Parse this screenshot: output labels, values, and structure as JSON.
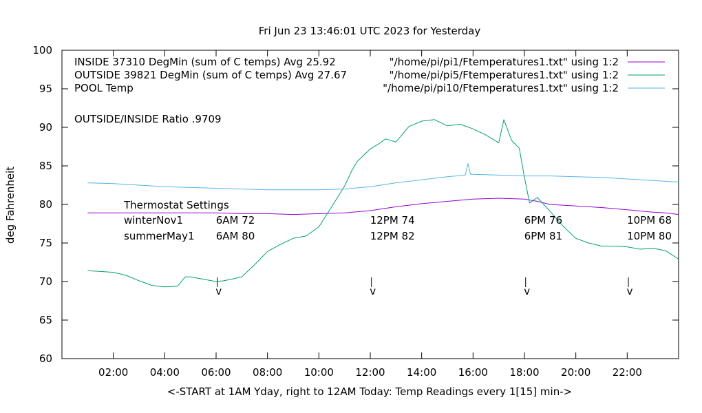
{
  "chart_data": {
    "type": "line",
    "title": "Fri Jun 23 13:46:01 UTC 2023 for Yesterday",
    "xlabel": "<-START at 1AM Yday, right to 12AM Today:  Temp Readings every 1[15] min->",
    "ylabel": "deg Fahrenheit",
    "xlim": [
      0.0,
      24.0
    ],
    "ylim": [
      60,
      100
    ],
    "x_ticks": [
      {
        "x": 2,
        "label": "02:00"
      },
      {
        "x": 4,
        "label": "04:00"
      },
      {
        "x": 6,
        "label": "06:00"
      },
      {
        "x": 8,
        "label": "08:00"
      },
      {
        "x": 10,
        "label": "10:00"
      },
      {
        "x": 12,
        "label": "12:00"
      },
      {
        "x": 14,
        "label": "14:00"
      },
      {
        "x": 16,
        "label": "16:00"
      },
      {
        "x": 18,
        "label": "18:00"
      },
      {
        "x": 20,
        "label": "20:00"
      },
      {
        "x": 22,
        "label": "22:00"
      }
    ],
    "y_ticks": [
      {
        "y": 60,
        "label": "60"
      },
      {
        "y": 65,
        "label": "65"
      },
      {
        "y": 70,
        "label": "70"
      },
      {
        "y": 75,
        "label": "75"
      },
      {
        "y": 80,
        "label": "80"
      },
      {
        "y": 85,
        "label": "85"
      },
      {
        "y": 90,
        "label": "90"
      },
      {
        "y": 95,
        "label": "95"
      },
      {
        "y": 100,
        "label": "100"
      }
    ],
    "grid": false,
    "legend_position": "top-right",
    "series": [
      {
        "name": "INSIDE 37310 DegMin (sum of C temps) Avg 25.92",
        "file": "\"/home/pi/pi1/Ftemperatures1.txt\" using 1:2",
        "color": "#9400d3",
        "x": [
          1.0,
          2.0,
          3.0,
          4.0,
          5.0,
          6.0,
          7.0,
          8.0,
          9.0,
          10.0,
          11.0,
          12.0,
          13.0,
          14.0,
          15.0,
          16.0,
          17.0,
          18.0,
          18.5,
          19.0,
          19.5,
          20.0,
          21.0,
          22.0,
          23.0,
          23.5,
          24.0
        ],
        "y": [
          78.9,
          78.9,
          78.9,
          78.9,
          78.9,
          78.9,
          78.8,
          78.8,
          78.7,
          78.8,
          78.9,
          79.2,
          79.7,
          80.1,
          80.4,
          80.7,
          80.8,
          80.7,
          80.4,
          80.0,
          79.9,
          79.8,
          79.6,
          79.3,
          79.0,
          78.9,
          78.7
        ]
      },
      {
        "name": "OUTSIDE 39821 DegMin (sum of C temps) Avg 27.67",
        "file": "\"/home/pi/pi5/Ftemperatures1.txt\" using 1:2",
        "color": "#009e73",
        "x": [
          1.0,
          1.5,
          2.0,
          2.5,
          3.0,
          3.5,
          4.0,
          4.5,
          4.8,
          5.0,
          5.5,
          6.0,
          6.3,
          6.6,
          7.0,
          7.5,
          8.0,
          8.5,
          9.0,
          9.5,
          10.0,
          10.5,
          11.0,
          11.3,
          11.5,
          12.0,
          12.3,
          12.6,
          13.0,
          13.5,
          14.0,
          14.5,
          15.0,
          15.5,
          16.0,
          16.5,
          17.0,
          17.2,
          17.5,
          17.8,
          18.0,
          18.2,
          18.5,
          19.0,
          19.5,
          20.0,
          20.5,
          21.0,
          21.5,
          22.0,
          22.5,
          23.0,
          23.5,
          24.0
        ],
        "y": [
          71.4,
          71.3,
          71.2,
          70.8,
          70.1,
          69.5,
          69.3,
          69.4,
          70.6,
          70.6,
          70.3,
          70.0,
          70.1,
          70.3,
          70.6,
          72.2,
          73.9,
          74.8,
          75.6,
          75.9,
          77.1,
          79.7,
          82.4,
          84.5,
          85.6,
          87.2,
          87.8,
          88.5,
          88.1,
          90.1,
          90.8,
          91.0,
          90.2,
          90.4,
          89.8,
          89.0,
          88.0,
          91.0,
          88.3,
          87.3,
          83.5,
          80.2,
          80.9,
          79.1,
          77.2,
          75.6,
          75.0,
          74.6,
          74.6,
          74.5,
          74.2,
          74.3,
          74.0,
          72.9
        ]
      },
      {
        "name": "POOL Temp",
        "file": "\"/home/pi/pi10/Ftemperatures1.txt\" using 1:2",
        "color": "#56b4e9",
        "x": [
          1.0,
          2.0,
          3.0,
          4.0,
          5.0,
          6.0,
          7.0,
          8.0,
          9.0,
          10.0,
          11.0,
          12.0,
          13.0,
          14.0,
          15.0,
          15.7,
          15.8,
          15.9,
          16.0,
          17.0,
          18.0,
          19.0,
          20.0,
          21.0,
          22.0,
          23.0,
          24.0
        ],
        "y": [
          82.8,
          82.7,
          82.5,
          82.3,
          82.2,
          82.1,
          82.0,
          81.9,
          81.9,
          81.9,
          82.0,
          82.3,
          82.8,
          83.2,
          83.6,
          83.8,
          85.3,
          83.9,
          83.9,
          83.8,
          83.7,
          83.7,
          83.6,
          83.5,
          83.3,
          83.1,
          82.9
        ]
      }
    ],
    "annotations": {
      "ratio_label": "OUTSIDE/INSIDE Ratio .9709",
      "thermostat_title": "Thermostat Settings",
      "winter_label": "winterNov1",
      "summer_label": "summerMay1",
      "settings": [
        {
          "x": 6.1,
          "winter": "6AM 72",
          "summer": "6AM 80"
        },
        {
          "x": 12.1,
          "winter": "12PM 74",
          "summer": "12PM 82"
        },
        {
          "x": 18.1,
          "winter": "6PM 76",
          "summer": "6PM 81"
        },
        {
          "x": 22.1,
          "winter": "10PM 68",
          "summer": "10PM 80"
        }
      ],
      "arrow_glyph": "v"
    }
  }
}
